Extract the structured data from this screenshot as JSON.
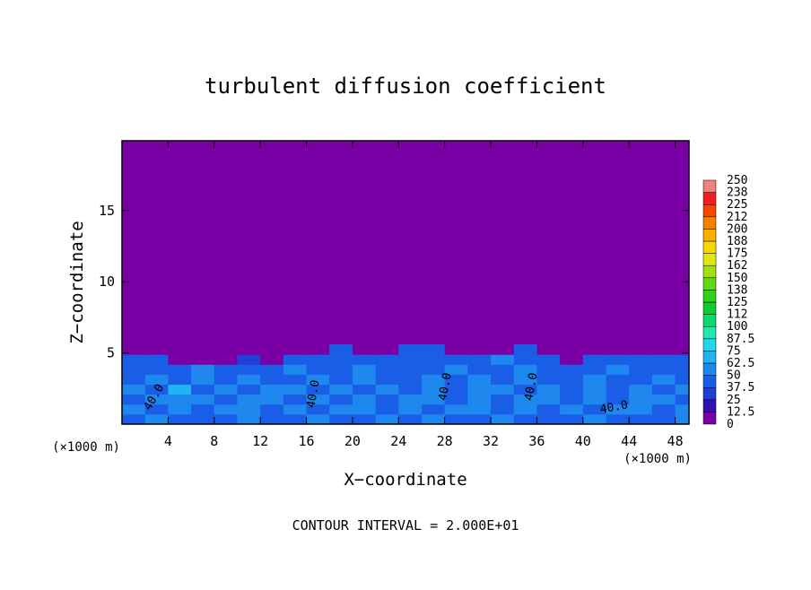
{
  "chart_data": {
    "type": "contour",
    "title": "turbulent diffusion coefficient",
    "x_label": "X−coordinate",
    "y_label": "Z−coordinate",
    "x_unit": "(×1000 m)",
    "y_unit": "(×1000 m)",
    "footnote": "CONTOUR INTERVAL = 2.000E+01",
    "xlim": [
      0,
      49.2
    ],
    "xticks": [
      4,
      8,
      12,
      16,
      20,
      24,
      28,
      32,
      36,
      40,
      44,
      48
    ],
    "ylim": [
      0,
      19.9
    ],
    "yticks": [
      5,
      10,
      15
    ],
    "background_value": 0,
    "x": [
      1,
      3,
      5,
      7,
      9,
      11,
      13,
      15,
      17,
      19,
      21,
      23,
      25,
      27,
      29,
      31,
      33,
      35,
      37,
      39,
      41,
      43,
      45,
      47,
      49
    ],
    "y": [
      0.35,
      1.05,
      1.75,
      2.45,
      3.15,
      3.85,
      4.55,
      5.25
    ],
    "z": [
      [
        45,
        50,
        45,
        40,
        45,
        50,
        40,
        45,
        50,
        45,
        40,
        50,
        45,
        50,
        40,
        45,
        50,
        45,
        40,
        45,
        50,
        45,
        40,
        45,
        50
      ],
      [
        50,
        45,
        55,
        45,
        50,
        60,
        45,
        50,
        45,
        55,
        50,
        45,
        50,
        45,
        55,
        50,
        45,
        50,
        45,
        50,
        45,
        55,
        50,
        45,
        50
      ],
      [
        45,
        50,
        60,
        50,
        45,
        55,
        50,
        45,
        50,
        45,
        50,
        45,
        50,
        55,
        45,
        50,
        45,
        55,
        50,
        45,
        50,
        45,
        50,
        55,
        45
      ],
      [
        50,
        45,
        70,
        45,
        50,
        45,
        55,
        50,
        45,
        50,
        45,
        50,
        45,
        50,
        45,
        55,
        50,
        45,
        50,
        45,
        50,
        45,
        50,
        45,
        50
      ],
      [
        45,
        50,
        45,
        55,
        45,
        50,
        45,
        40,
        50,
        45,
        50,
        45,
        40,
        50,
        45,
        50,
        45,
        50,
        40,
        45,
        50,
        45,
        45,
        50,
        45
      ],
      [
        40,
        45,
        40,
        50,
        40,
        45,
        40,
        50,
        45,
        40,
        50,
        45,
        45,
        40,
        50,
        45,
        40,
        50,
        45,
        40,
        45,
        50,
        40,
        45,
        40
      ],
      [
        45,
        40,
        5,
        5,
        5,
        35,
        5,
        45,
        40,
        45,
        40,
        45,
        45,
        40,
        40,
        45,
        50,
        40,
        45,
        5,
        40,
        45,
        45,
        40,
        45
      ],
      [
        5,
        5,
        5,
        5,
        5,
        5,
        5,
        5,
        5,
        40,
        5,
        5,
        45,
        40,
        5,
        5,
        5,
        40,
        5,
        5,
        5,
        5,
        5,
        5,
        5
      ]
    ],
    "levels": [
      0,
      12.5,
      25,
      37.5,
      50,
      62.5,
      75,
      87.5,
      100,
      {
        "value": 112.5,
        "label": "112"
      },
      125,
      {
        "value": 137.5,
        "label": "138"
      },
      150,
      {
        "value": 162.5,
        "label": "162"
      },
      175,
      {
        "value": 187.5,
        "label": "188"
      },
      200,
      {
        "value": 212.5,
        "label": "212"
      },
      225,
      {
        "value": 237.5,
        "label": "238"
      },
      250
    ],
    "colors": [
      "#7a00a6",
      "#3010b0",
      "#1f3fd6",
      "#1a5ee8",
      "#1e88ee",
      "#20b4f0",
      "#22d8e8",
      "#20e8b0",
      "#10d870",
      "#10cc30",
      "#30d020",
      "#60d818",
      "#a0e010",
      "#e0e810",
      "#f8d800",
      "#f8b000",
      "#f88000",
      "#f84800",
      "#f02020",
      "#f08080"
    ],
    "contour_labels": [
      "40.0",
      "40.0",
      "40.0",
      "40.0",
      "40.0"
    ]
  }
}
